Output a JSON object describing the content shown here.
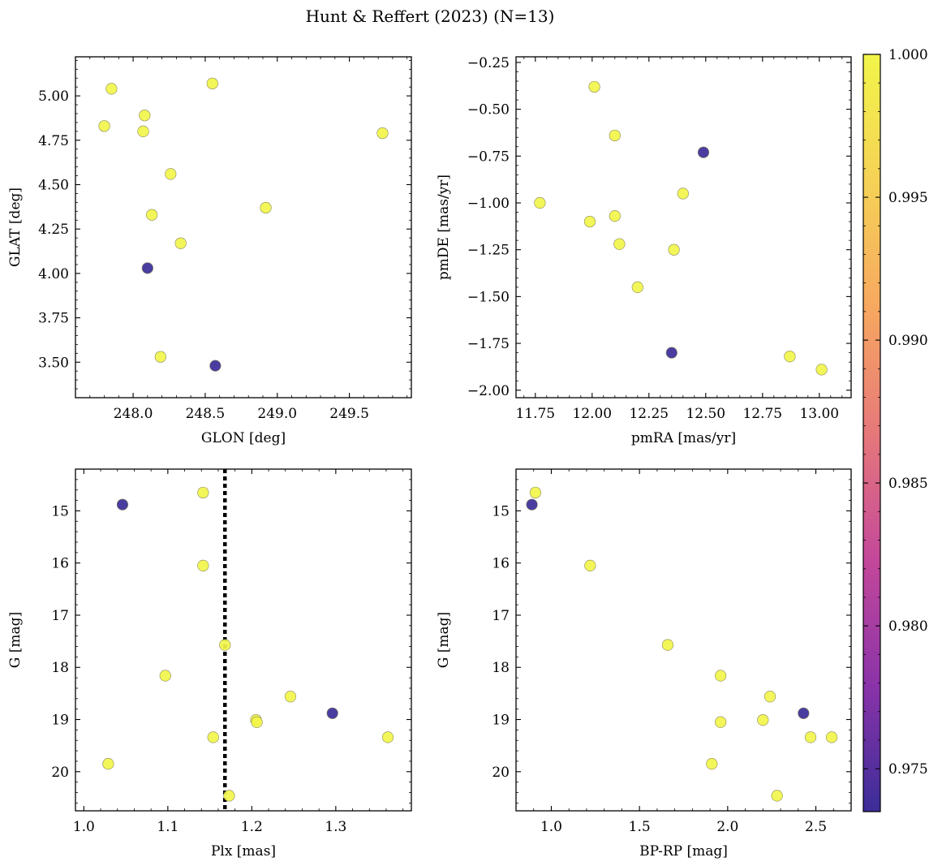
{
  "figure": {
    "title": "Hunt & Reffert (2023) (N=13)",
    "point_colors": {
      "low": "#3b2d98",
      "high": "#f2f54a",
      "edge": "#8a8a5a"
    }
  },
  "colorbar": {
    "min": 0.9735,
    "max": 1.0,
    "ticks": [
      0.975,
      0.98,
      0.985,
      0.99,
      0.995,
      1.0
    ],
    "tick_labels": [
      "0.975",
      "0.980",
      "0.985",
      "0.990",
      "0.995",
      "1.000"
    ],
    "colormap_stops": [
      "#3b2d98",
      "#8a33a8",
      "#c4489a",
      "#e6787a",
      "#f7a860",
      "#f5d256",
      "#f2f54a"
    ]
  },
  "chart_data": [
    {
      "type": "scatter",
      "name": "glon-glat",
      "xlabel": "GLON [deg]",
      "ylabel": "GLAT [deg]",
      "xlim": [
        247.6,
        249.93
      ],
      "ylim": [
        3.3,
        5.22
      ],
      "y_inverted": false,
      "xticks": [
        248.0,
        248.5,
        249.0,
        249.5
      ],
      "xtick_labels": [
        "248.0",
        "248.5",
        "249.0",
        "249.5"
      ],
      "yticks": [
        3.5,
        3.75,
        4.0,
        4.25,
        4.5,
        4.75,
        5.0
      ],
      "ytick_labels": [
        "3.50",
        "3.75",
        "4.00",
        "4.25",
        "4.50",
        "4.75",
        "5.00"
      ],
      "points": [
        {
          "x": 247.85,
          "y": 5.04,
          "p": 1.0
        },
        {
          "x": 247.8,
          "y": 4.83,
          "p": 1.0
        },
        {
          "x": 248.08,
          "y": 4.89,
          "p": 1.0
        },
        {
          "x": 248.07,
          "y": 4.8,
          "p": 1.0
        },
        {
          "x": 248.55,
          "y": 5.07,
          "p": 1.0
        },
        {
          "x": 249.73,
          "y": 4.79,
          "p": 1.0
        },
        {
          "x": 248.26,
          "y": 4.56,
          "p": 1.0
        },
        {
          "x": 248.13,
          "y": 4.33,
          "p": 1.0
        },
        {
          "x": 248.92,
          "y": 4.37,
          "p": 1.0
        },
        {
          "x": 248.33,
          "y": 4.17,
          "p": 1.0
        },
        {
          "x": 248.19,
          "y": 3.53,
          "p": 1.0
        },
        {
          "x": 248.1,
          "y": 4.03,
          "p": 0.9735
        },
        {
          "x": 248.57,
          "y": 3.48,
          "p": 0.9735
        }
      ]
    },
    {
      "type": "scatter",
      "name": "pmra-pmde",
      "xlabel": "pmRA [mas/yr]",
      "ylabel": "pmDE [mas/yr]",
      "xlim": [
        11.665,
        13.14
      ],
      "ylim": [
        -2.04,
        -0.22
      ],
      "y_inverted": false,
      "xticks": [
        11.75,
        12.0,
        12.25,
        12.5,
        12.75,
        13.0
      ],
      "xtick_labels": [
        "11.75",
        "12.00",
        "12.25",
        "12.50",
        "12.75",
        "13.00"
      ],
      "yticks": [
        -2.0,
        -1.75,
        -1.5,
        -1.25,
        -1.0,
        -0.75,
        -0.5,
        -0.25
      ],
      "ytick_labels": [
        "−2.00",
        "−1.75",
        "−1.50",
        "−1.25",
        "−1.00",
        "−0.75",
        "−0.50",
        "−0.25"
      ],
      "points": [
        {
          "x": 12.01,
          "y": -0.38,
          "p": 1.0
        },
        {
          "x": 12.1,
          "y": -0.64,
          "p": 1.0
        },
        {
          "x": 11.77,
          "y": -1.0,
          "p": 1.0
        },
        {
          "x": 11.99,
          "y": -1.1,
          "p": 1.0
        },
        {
          "x": 12.1,
          "y": -1.07,
          "p": 1.0
        },
        {
          "x": 12.12,
          "y": -1.22,
          "p": 1.0
        },
        {
          "x": 12.4,
          "y": -0.95,
          "p": 1.0
        },
        {
          "x": 12.36,
          "y": -1.25,
          "p": 1.0
        },
        {
          "x": 12.2,
          "y": -1.45,
          "p": 1.0
        },
        {
          "x": 12.87,
          "y": -1.82,
          "p": 1.0
        },
        {
          "x": 13.01,
          "y": -1.89,
          "p": 1.0
        },
        {
          "x": 12.49,
          "y": -0.73,
          "p": 0.9735
        },
        {
          "x": 12.35,
          "y": -1.8,
          "p": 0.9735
        }
      ]
    },
    {
      "type": "scatter",
      "name": "plx-g",
      "xlabel": "Plx [mas]",
      "ylabel": "G [mag]",
      "xlim": [
        0.99,
        1.39
      ],
      "ylim": [
        14.2,
        20.75
      ],
      "y_inverted": true,
      "vline": {
        "x": 1.168,
        "style": "dotted"
      },
      "xticks": [
        1.0,
        1.1,
        1.2,
        1.3
      ],
      "xtick_labels": [
        "1.0",
        "1.1",
        "1.2",
        "1.3"
      ],
      "yticks": [
        15,
        16,
        17,
        18,
        19,
        20
      ],
      "ytick_labels": [
        "15",
        "16",
        "17",
        "18",
        "19",
        "20"
      ],
      "points": [
        {
          "x": 1.142,
          "y": 14.65,
          "p": 1.0
        },
        {
          "x": 1.142,
          "y": 16.05,
          "p": 1.0
        },
        {
          "x": 1.168,
          "y": 17.57,
          "p": 1.0
        },
        {
          "x": 1.097,
          "y": 18.16,
          "p": 1.0
        },
        {
          "x": 1.246,
          "y": 18.56,
          "p": 1.0
        },
        {
          "x": 1.205,
          "y": 19.01,
          "p": 1.0
        },
        {
          "x": 1.206,
          "y": 19.05,
          "p": 1.0
        },
        {
          "x": 1.154,
          "y": 19.34,
          "p": 1.0
        },
        {
          "x": 1.362,
          "y": 19.34,
          "p": 1.0
        },
        {
          "x": 1.029,
          "y": 19.85,
          "p": 1.0
        },
        {
          "x": 1.173,
          "y": 20.46,
          "p": 1.0
        },
        {
          "x": 1.046,
          "y": 14.88,
          "p": 0.9735
        },
        {
          "x": 1.296,
          "y": 18.88,
          "p": 0.9735
        }
      ]
    },
    {
      "type": "scatter",
      "name": "bprp-g",
      "xlabel": "BP-RP [mag]",
      "ylabel": "G [mag]",
      "xlim": [
        0.8,
        2.7
      ],
      "ylim": [
        14.2,
        20.75
      ],
      "y_inverted": true,
      "xticks": [
        1.0,
        1.5,
        2.0,
        2.5
      ],
      "xtick_labels": [
        "1.0",
        "1.5",
        "2.0",
        "2.5"
      ],
      "yticks": [
        15,
        16,
        17,
        18,
        19,
        20
      ],
      "ytick_labels": [
        "15",
        "16",
        "17",
        "18",
        "19",
        "20"
      ],
      "points": [
        {
          "x": 0.91,
          "y": 14.65,
          "p": 1.0
        },
        {
          "x": 1.22,
          "y": 16.05,
          "p": 1.0
        },
        {
          "x": 1.66,
          "y": 17.57,
          "p": 1.0
        },
        {
          "x": 1.96,
          "y": 18.16,
          "p": 1.0
        },
        {
          "x": 2.24,
          "y": 18.56,
          "p": 1.0
        },
        {
          "x": 2.2,
          "y": 19.01,
          "p": 1.0
        },
        {
          "x": 1.96,
          "y": 19.05,
          "p": 1.0
        },
        {
          "x": 2.47,
          "y": 19.34,
          "p": 1.0
        },
        {
          "x": 2.59,
          "y": 19.34,
          "p": 1.0
        },
        {
          "x": 1.91,
          "y": 19.85,
          "p": 1.0
        },
        {
          "x": 2.28,
          "y": 20.46,
          "p": 1.0
        },
        {
          "x": 0.89,
          "y": 14.88,
          "p": 0.9735
        },
        {
          "x": 2.43,
          "y": 18.88,
          "p": 0.9735
        }
      ]
    }
  ]
}
